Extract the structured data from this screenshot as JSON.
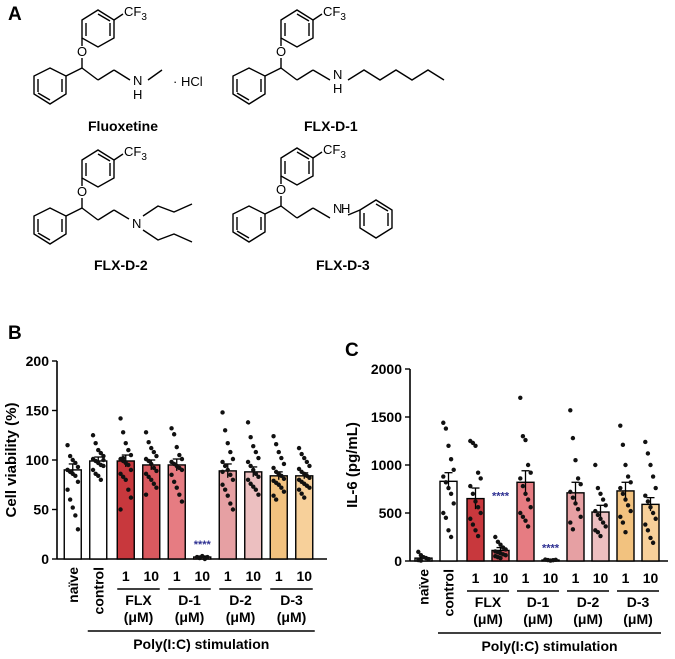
{
  "panels": {
    "a": "A",
    "b": "B",
    "c": "C"
  },
  "structures": {
    "fluoxetine": {
      "name": "Fluoxetine",
      "cf3": "CF",
      "cf3_sub": "3",
      "o": "O",
      "n": "N",
      "h": "H",
      "salt": "· HCl"
    },
    "d1": {
      "name": "FLX-D-1",
      "cf3": "CF",
      "cf3_sub": "3",
      "o": "O",
      "n": "N",
      "h": "H"
    },
    "d2": {
      "name": "FLX-D-2",
      "cf3": "CF",
      "cf3_sub": "3",
      "o": "O",
      "n": "N"
    },
    "d3": {
      "name": "FLX-D-3",
      "cf3": "CF",
      "cf3_sub": "3",
      "o": "O",
      "n": "N",
      "h": "H"
    }
  },
  "chart_data": [
    {
      "type": "bar",
      "panel": "B",
      "ylabel": "Cell viability (%)",
      "ylim": [
        0,
        200
      ],
      "yticks": [
        0,
        50,
        100,
        150,
        200
      ],
      "categories": [
        "naïve",
        "control",
        "1",
        "10",
        "1",
        "10",
        "1",
        "10",
        "1",
        "10"
      ],
      "groups": [
        {
          "label": "FLX",
          "unit": "(μM)"
        },
        {
          "label": "D-1",
          "unit": "(μM)"
        },
        {
          "label": "D-2",
          "unit": "(μM)"
        },
        {
          "label": "D-3",
          "unit": "(μM)"
        }
      ],
      "stimulation_label": "Poly(I:C) stimulation",
      "colors": [
        "#ffffff",
        "#ffffff",
        "#c8383d",
        "#d9595f",
        "#e67c82",
        "#f0b0b3",
        "#e6a0a3",
        "#ecbfc0",
        "#f2c27f",
        "#f7d09a"
      ],
      "values": [
        90,
        99,
        99,
        95,
        95,
        2,
        89,
        88,
        84,
        84
      ],
      "errors": [
        6,
        4,
        6,
        5,
        6,
        1,
        7,
        5,
        4,
        3
      ],
      "significance": [
        {
          "index": 5,
          "text": "****",
          "color": "#2e3192"
        }
      ],
      "points": [
        [
          115,
          104,
          100,
          97,
          93,
          90,
          88,
          86,
          84,
          78,
          70,
          60,
          52,
          44,
          30,
          90
        ],
        [
          125,
          117,
          110,
          107,
          104,
          101,
          99,
          97,
          95,
          94,
          90,
          86,
          84,
          80,
          100
        ],
        [
          142,
          128,
          117,
          110,
          105,
          101,
          99,
          97,
          95,
          90,
          86,
          83,
          80,
          70,
          62,
          50,
          102
        ],
        [
          128,
          118,
          112,
          108,
          104,
          101,
          99,
          96,
          92,
          89,
          86,
          83,
          80,
          76,
          72,
          65
        ],
        [
          132,
          126,
          113,
          105,
          101,
          98,
          96,
          94,
          92,
          90,
          85,
          78,
          72,
          65,
          58
        ],
        [
          2,
          1,
          3,
          0,
          2
        ],
        [
          148,
          130,
          117,
          108,
          101,
          98,
          94,
          90,
          85,
          80,
          75,
          70,
          64,
          56,
          50,
          88
        ],
        [
          138,
          123,
          114,
          108,
          102,
          98,
          94,
          90,
          86,
          83,
          80,
          76,
          73,
          70,
          65
        ],
        [
          124,
          116,
          108,
          102,
          96,
          92,
          88,
          86,
          84,
          81,
          79,
          77,
          75,
          72,
          68,
          64,
          60,
          85
        ],
        [
          112,
          106,
          102,
          98,
          94,
          91,
          88,
          86,
          84,
          82,
          80,
          78,
          76,
          74,
          72,
          70,
          66,
          62
        ]
      ]
    },
    {
      "type": "bar",
      "panel": "C",
      "ylabel": "IL-6 (pg/mL)",
      "ylim": [
        0,
        2000
      ],
      "yticks": [
        0,
        500,
        1000,
        1500,
        2000
      ],
      "categories": [
        "naïve",
        "control",
        "1",
        "10",
        "1",
        "10",
        "1",
        "10",
        "1",
        "10"
      ],
      "groups": [
        {
          "label": "FLX",
          "unit": "(μM)"
        },
        {
          "label": "D-1",
          "unit": "(μM)"
        },
        {
          "label": "D-2",
          "unit": "(μM)"
        },
        {
          "label": "D-3",
          "unit": "(μM)"
        }
      ],
      "stimulation_label": "Poly(I:C) stimulation",
      "colors": [
        "#ffffff",
        "#ffffff",
        "#c8383d",
        "#d9595f",
        "#e67c82",
        "#f0b0b3",
        "#e6a0a3",
        "#ecbfc0",
        "#f2c27f",
        "#f7d09a"
      ],
      "values": [
        30,
        830,
        650,
        110,
        820,
        10,
        710,
        510,
        730,
        590
      ],
      "errors": [
        10,
        90,
        110,
        30,
        120,
        5,
        110,
        70,
        90,
        70
      ],
      "significance": [
        {
          "index": 3,
          "text": "****",
          "color": "#2e3192"
        },
        {
          "index": 5,
          "text": "****",
          "color": "#2e3192"
        }
      ],
      "points": [
        [
          95,
          60,
          40,
          30,
          20,
          10,
          5
        ],
        [
          1440,
          1380,
          1200,
          1060,
          950,
          880,
          820,
          760,
          700,
          600,
          500,
          450,
          320,
          250
        ],
        [
          1250,
          1230,
          1200,
          920,
          860,
          780,
          700,
          620,
          560,
          500,
          440,
          380,
          320,
          260
        ],
        [
          250,
          200,
          170,
          140,
          120,
          100,
          90,
          80,
          70,
          60,
          50,
          40,
          30
        ],
        [
          1700,
          1300,
          1260,
          1000,
          920,
          860,
          780,
          700,
          640,
          560,
          500,
          460,
          420,
          360
        ],
        [
          15,
          10,
          5,
          8,
          12
        ],
        [
          1570,
          1280,
          1050,
          860,
          800,
          720,
          660,
          600,
          540,
          460,
          400,
          330
        ],
        [
          1000,
          760,
          700,
          640,
          580,
          520,
          480,
          440,
          400,
          360,
          320,
          300,
          260
        ],
        [
          1410,
          1210,
          1000,
          880,
          820,
          760,
          700,
          640,
          580,
          520,
          460,
          400,
          300
        ],
        [
          1240,
          1120,
          1000,
          880,
          760,
          680,
          620,
          560,
          500,
          440,
          380,
          320,
          240,
          190
        ]
      ]
    }
  ]
}
